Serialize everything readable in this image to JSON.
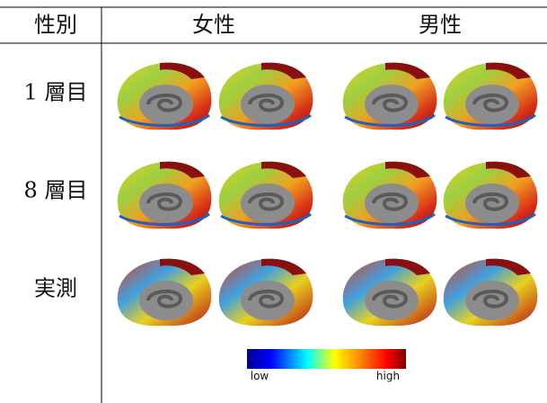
{
  "table": {
    "header": [
      "性別",
      "女性",
      "男性"
    ],
    "rows": [
      [
        "1 層目"
      ],
      [
        "8 層目"
      ],
      [
        "実測"
      ]
    ]
  },
  "colorbar": {
    "low": "low",
    "high": "high"
  }
}
